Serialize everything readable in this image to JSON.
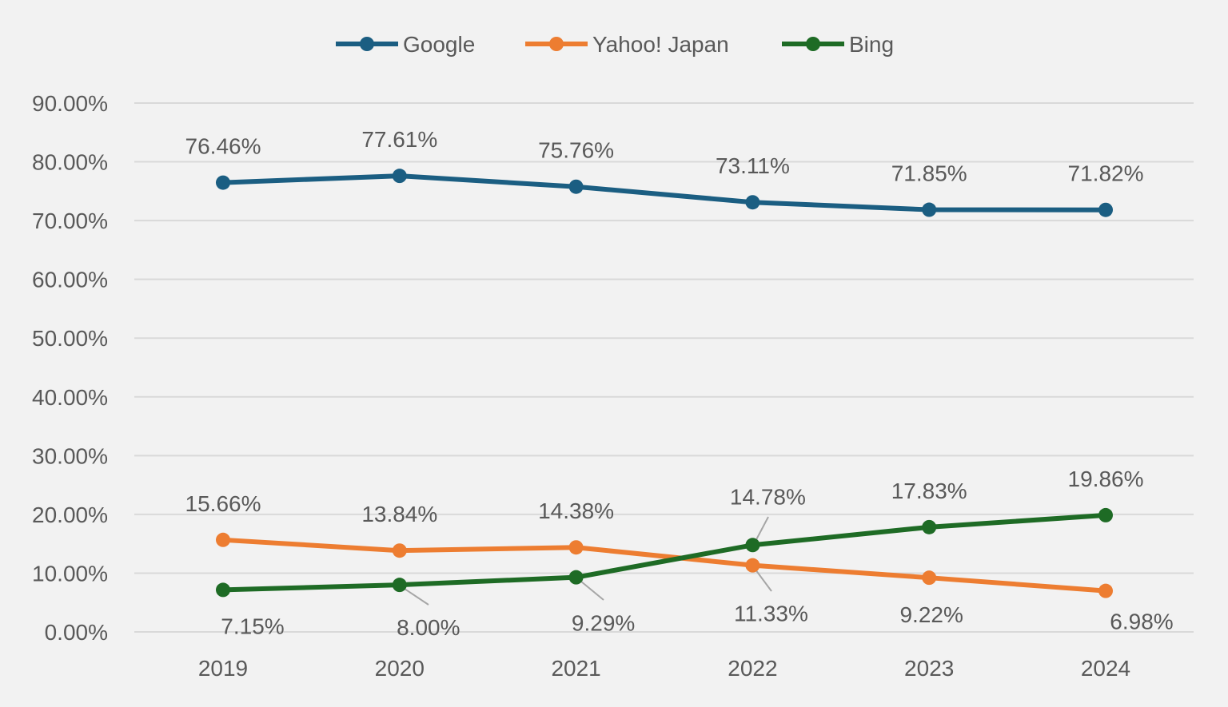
{
  "chart_data": {
    "type": "line",
    "title": "",
    "xlabel": "",
    "ylabel": "",
    "categories": [
      "2019",
      "2020",
      "2021",
      "2022",
      "2023",
      "2024"
    ],
    "ylim": [
      0,
      90
    ],
    "yticks": [
      "0.00%",
      "10.00%",
      "20.00%",
      "30.00%",
      "40.00%",
      "50.00%",
      "60.00%",
      "70.00%",
      "80.00%",
      "90.00%"
    ],
    "grid": true,
    "legend_position": "top",
    "series": [
      {
        "name": "Google",
        "color": "#1b5e82",
        "values": [
          76.46,
          77.61,
          75.76,
          73.11,
          71.85,
          71.82
        ],
        "labels": [
          "76.46%",
          "77.61%",
          "75.76%",
          "73.11%",
          "71.85%",
          "71.82%"
        ]
      },
      {
        "name": "Yahoo! Japan",
        "color": "#ed7d31",
        "values": [
          15.66,
          13.84,
          14.38,
          11.33,
          9.22,
          6.98
        ],
        "labels": [
          "15.66%",
          "13.84%",
          "14.38%",
          "11.33%",
          "9.22%",
          "6.98%"
        ]
      },
      {
        "name": "Bing",
        "color": "#1e6b25",
        "values": [
          7.15,
          8.0,
          9.29,
          14.78,
          17.83,
          19.86
        ],
        "labels": [
          "7.15%",
          "8.00%",
          "9.29%",
          "14.78%",
          "17.83%",
          "19.86%"
        ]
      }
    ]
  }
}
